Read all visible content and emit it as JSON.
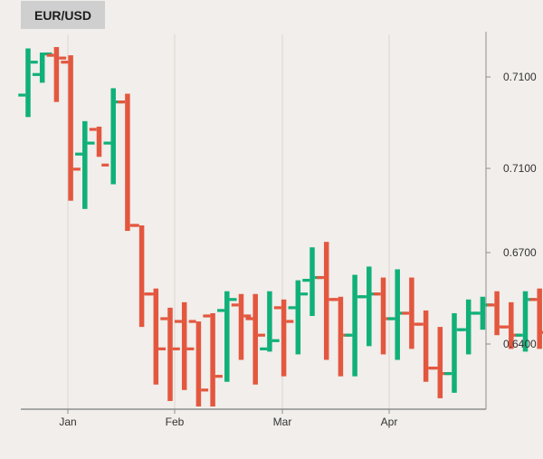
{
  "badge": {
    "label": "EUR/USD"
  },
  "chart_data": {
    "type": "ohlc",
    "title": "",
    "xlabel": "",
    "ylabel": "",
    "x_ticks": [
      "Jan",
      "Feb",
      "Mar",
      "Apr"
    ],
    "y_ticks": [
      "0.7100",
      "0.7100",
      "0.6700",
      "0.6400"
    ],
    "grid": {
      "vertical": true,
      "horizontal": false
    },
    "legend": "none",
    "colors": {
      "up": "#10b079",
      "down": "#e3573f",
      "grid": "#dad6d2",
      "axis": "#9a9a9a",
      "background": "#f1eeeb"
    },
    "bars": [
      {
        "date": "Jan-1",
        "open": 0.6975,
        "high": 0.7145,
        "low": 0.6895,
        "close": 0.7095
      },
      {
        "date": "Jan-2",
        "open": 0.705,
        "high": 0.713,
        "low": 0.702,
        "close": 0.7125
      },
      {
        "date": "Jan-3",
        "open": 0.712,
        "high": 0.715,
        "low": 0.695,
        "close": 0.711
      },
      {
        "date": "Jan-4",
        "open": 0.7095,
        "high": 0.712,
        "low": 0.659,
        "close": 0.6705
      },
      {
        "date": "Jan-5",
        "open": 0.676,
        "high": 0.688,
        "low": 0.656,
        "close": 0.68
      },
      {
        "date": "Jan-6",
        "open": 0.685,
        "high": 0.686,
        "low": 0.675,
        "close": 0.672
      },
      {
        "date": "Jan-7",
        "open": 0.68,
        "high": 0.7,
        "low": 0.665,
        "close": 0.695
      },
      {
        "date": "Jan-8",
        "open": 0.695,
        "high": 0.698,
        "low": 0.648,
        "close": 0.65
      },
      {
        "date": "Jan-9",
        "open": 0.65,
        "high": 0.65,
        "low": 0.613,
        "close": 0.625
      },
      {
        "date": "Jan-10",
        "open": 0.625,
        "high": 0.627,
        "low": 0.592,
        "close": 0.605
      },
      {
        "date": "Feb-1",
        "open": 0.616,
        "high": 0.62,
        "low": 0.586,
        "close": 0.605
      },
      {
        "date": "Feb-2",
        "open": 0.615,
        "high": 0.622,
        "low": 0.59,
        "close": 0.605
      },
      {
        "date": "Feb-3",
        "open": 0.615,
        "high": 0.615,
        "low": 0.584,
        "close": 0.59
      },
      {
        "date": "Feb-4",
        "open": 0.617,
        "high": 0.618,
        "low": 0.584,
        "close": 0.595
      },
      {
        "date": "Feb-5",
        "open": 0.619,
        "high": 0.626,
        "low": 0.593,
        "close": 0.623
      },
      {
        "date": "Feb-6",
        "open": 0.621,
        "high": 0.625,
        "low": 0.601,
        "close": 0.617
      },
      {
        "date": "Feb-7",
        "open": 0.616,
        "high": 0.625,
        "low": 0.592,
        "close": 0.61
      },
      {
        "date": "Feb-8",
        "open": 0.605,
        "high": 0.626,
        "low": 0.604,
        "close": 0.608
      },
      {
        "date": "Feb-9",
        "open": 0.62,
        "high": 0.623,
        "low": 0.595,
        "close": 0.615
      },
      {
        "date": "Feb-10",
        "open": 0.62,
        "high": 0.63,
        "low": 0.603,
        "close": 0.625
      },
      {
        "date": "Mar-1",
        "open": 0.63,
        "high": 0.642,
        "low": 0.617,
        "close": 0.631
      },
      {
        "date": "Mar-2",
        "open": 0.631,
        "high": 0.644,
        "low": 0.601,
        "close": 0.623
      },
      {
        "date": "Mar-3",
        "open": 0.623,
        "high": 0.624,
        "low": 0.595,
        "close": 0.61
      },
      {
        "date": "Mar-4",
        "open": 0.61,
        "high": 0.632,
        "low": 0.595,
        "close": 0.624
      },
      {
        "date": "Mar-5",
        "open": 0.624,
        "high": 0.635,
        "low": 0.606,
        "close": 0.625
      },
      {
        "date": "Mar-6",
        "open": 0.625,
        "high": 0.631,
        "low": 0.603,
        "close": 0.616
      },
      {
        "date": "Mar-7",
        "open": 0.616,
        "high": 0.634,
        "low": 0.601,
        "close": 0.618
      },
      {
        "date": "Mar-8",
        "open": 0.618,
        "high": 0.631,
        "low": 0.605,
        "close": 0.614
      },
      {
        "date": "Mar-9",
        "open": 0.614,
        "high": 0.619,
        "low": 0.593,
        "close": 0.598
      },
      {
        "date": "Mar-10",
        "open": 0.598,
        "high": 0.613,
        "low": 0.587,
        "close": 0.596
      },
      {
        "date": "Apr-1",
        "open": 0.596,
        "high": 0.618,
        "low": 0.589,
        "close": 0.612
      },
      {
        "date": "Apr-2",
        "open": 0.612,
        "high": 0.623,
        "low": 0.603,
        "close": 0.618
      },
      {
        "date": "Apr-3",
        "open": 0.618,
        "high": 0.624,
        "low": 0.612,
        "close": 0.621
      },
      {
        "date": "Apr-4",
        "open": 0.621,
        "high": 0.626,
        "low": 0.61,
        "close": 0.613
      },
      {
        "date": "Apr-5",
        "open": 0.613,
        "high": 0.622,
        "low": 0.605,
        "close": 0.61
      },
      {
        "date": "Apr-6",
        "open": 0.61,
        "high": 0.626,
        "low": 0.604,
        "close": 0.623
      },
      {
        "date": "Apr-7",
        "open": 0.623,
        "high": 0.627,
        "low": 0.605,
        "close": 0.611
      }
    ]
  }
}
